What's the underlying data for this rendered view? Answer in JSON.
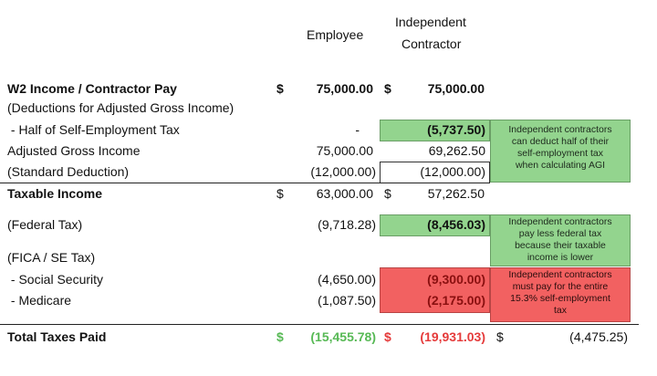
{
  "header": {
    "employee": "Employee",
    "contractor": [
      "Independent",
      "Contractor"
    ]
  },
  "rows": [
    {
      "label": "W2 Income / Contractor Pay",
      "employee_currency": "$",
      "employee": "75,000.00",
      "contractor_currency": "$",
      "contractor": "75,000.00"
    },
    {
      "label": "(Deductions for Adjusted Gross Income)"
    },
    {
      "label": " - Half of Self-Employment Tax",
      "employee": "-",
      "contractor": "(5,737.50)"
    },
    {
      "label": "Adjusted Gross Income",
      "employee": "75,000.00",
      "contractor": "69,262.50"
    },
    {
      "label": "(Standard Deduction)",
      "employee": "(12,000.00)",
      "contractor": "(12,000.00)"
    },
    {
      "label": "Taxable Income",
      "employee_currency": "$",
      "employee": "63,000.00",
      "contractor_currency": "$",
      "contractor": "57,262.50"
    },
    {
      "label": "(Federal Tax)",
      "employee": "(9,718.28)",
      "contractor": "(8,456.03)"
    },
    {
      "label": "(FICA / SE Tax)"
    },
    {
      "label": " - Social Security",
      "employee": "(4,650.00)",
      "contractor": "(9,300.00)"
    },
    {
      "label": " - Medicare",
      "employee": "(1,087.50)",
      "contractor": "(2,175.00)"
    }
  ],
  "total": {
    "label": "Total Taxes Paid",
    "employee_currency": "$",
    "employee": "(15,455.78)",
    "contractor_currency": "$",
    "contractor": "(19,931.03)",
    "difference_currency": "$",
    "difference": "(4,475.25)"
  },
  "notes": [
    [
      "Independent contractors",
      "can deduct half of their",
      "self-employment tax",
      "when calculating AGI"
    ],
    [
      "Independent contractors",
      "pay less federal tax",
      "because their taxable",
      "income is lower"
    ],
    [
      "Independent contractors",
      "must pay for the entire",
      "15.3% self-employment",
      "tax"
    ]
  ]
}
